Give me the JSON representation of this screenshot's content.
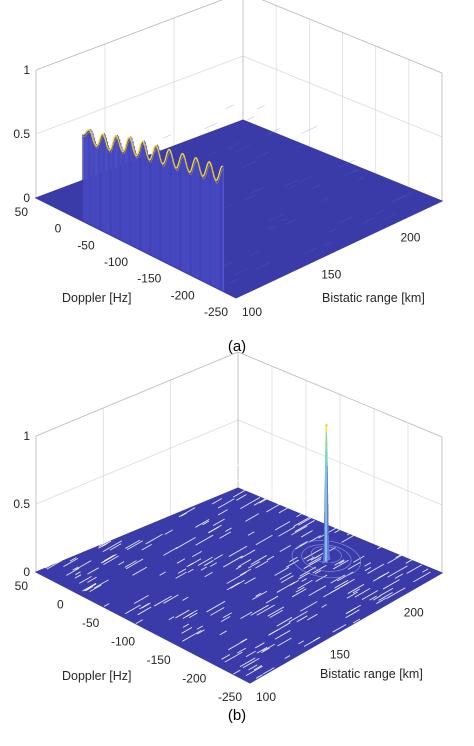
{
  "chart_data": [
    {
      "type": "surface",
      "panel": "a",
      "caption": "(a)",
      "xlabel": "Doppler [Hz]",
      "ylabel": "Bistatic range [km]",
      "zlabel": "",
      "x_ticks": [
        "50",
        "0",
        "-50",
        "-100",
        "-150",
        "-200",
        "-250"
      ],
      "y_ticks": [
        "100",
        "150",
        "200"
      ],
      "z_ticks": [
        "0",
        "0.5",
        "1"
      ],
      "xlim": [
        50,
        -250
      ],
      "ylim": [
        100,
        230
      ],
      "zlim": [
        0,
        1
      ],
      "grid": true,
      "colormap": [
        "#3a3aa8",
        "#4d5bdb",
        "#2fb8c8",
        "#f0e030"
      ],
      "ridge": {
        "description_value": "flat ridge along Doppler at range ~100 km",
        "range_km": 100,
        "doppler_hz": [
          -20,
          -30,
          -40,
          -50,
          -60,
          -70,
          -80,
          -90,
          -100,
          -110,
          -120,
          -130,
          -140,
          -150,
          -160,
          -170,
          -180,
          -190,
          -200,
          -210,
          -220,
          -230
        ],
        "height": [
          0.68,
          0.74,
          0.64,
          0.76,
          0.66,
          0.8,
          0.7,
          0.84,
          0.72,
          0.86,
          0.74,
          0.88,
          0.76,
          0.9,
          0.78,
          0.92,
          0.8,
          0.94,
          0.82,
          0.96,
          0.84,
          0.98
        ]
      }
    },
    {
      "type": "surface",
      "panel": "b",
      "caption": "(b)",
      "xlabel": "Doppler [Hz]",
      "ylabel": "Bistatic range [km]",
      "zlabel": "",
      "x_ticks": [
        "50",
        "0",
        "-50",
        "-100",
        "-150",
        "-200",
        "-250"
      ],
      "y_ticks": [
        "100",
        "150",
        "200"
      ],
      "z_ticks": [
        "0",
        "0.5",
        "1"
      ],
      "xlim": [
        50,
        -250
      ],
      "ylim": [
        100,
        230
      ],
      "zlim": [
        0,
        1
      ],
      "grid": true,
      "colormap": [
        "#3a3aa8",
        "#4d5bdb",
        "#2fb8c8",
        "#f0e030"
      ],
      "peak": {
        "doppler_hz": -150,
        "range_km": 200,
        "height": 1.0,
        "floor_noise": 0.04
      }
    }
  ]
}
